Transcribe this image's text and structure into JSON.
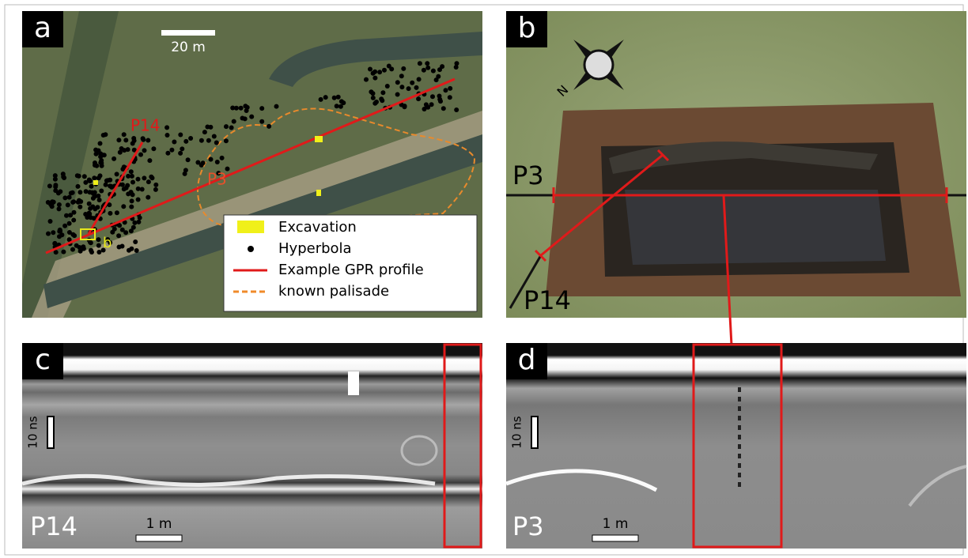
{
  "panels": [
    {
      "label": "a",
      "scale_bar": "20 m",
      "profile_labels": [
        "P14",
        "P3"
      ],
      "excavation_marker": "b",
      "legend": [
        "Excavation",
        "Hyperbola",
        "Example GPR profile",
        "known palisade"
      ]
    },
    {
      "label": "b",
      "compass": "N",
      "profile_labels": [
        "P3",
        "P14"
      ]
    },
    {
      "label": "c",
      "time_scale": "10 ns",
      "profile": "P14",
      "scale_bar": "1 m"
    },
    {
      "label": "d",
      "time_scale": "10 ns",
      "profile": "P3",
      "scale_bar": "1 m"
    }
  ]
}
